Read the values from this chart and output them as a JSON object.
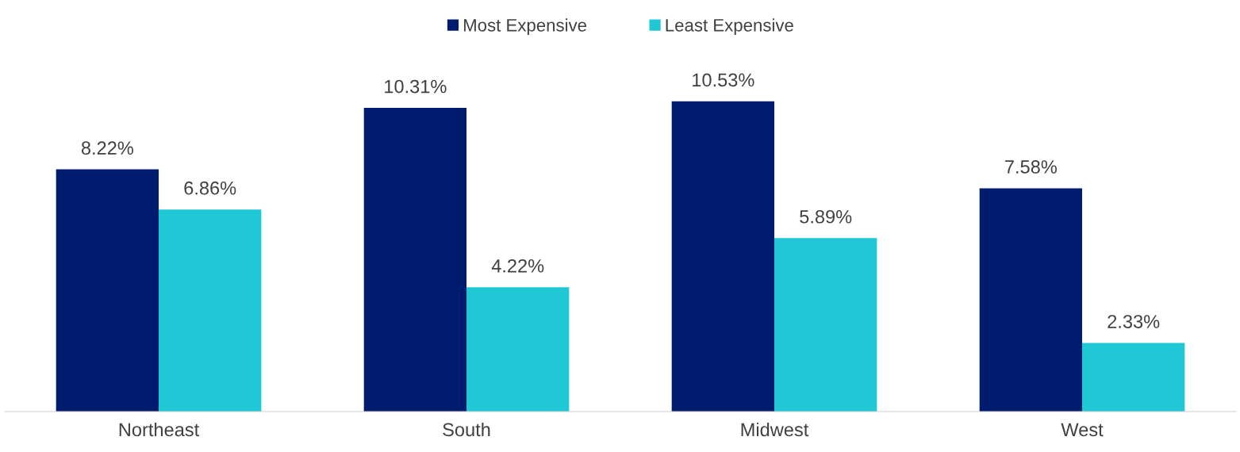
{
  "chart_data": {
    "type": "bar",
    "categories": [
      "Northeast",
      "South",
      "Midwest",
      "West"
    ],
    "series": [
      {
        "name": "Most Expensive",
        "color": "#001c6e",
        "values": [
          8.22,
          10.31,
          10.53,
          7.58
        ],
        "value_labels": [
          "8.22%",
          "10.31%",
          "10.53%",
          "7.58%"
        ]
      },
      {
        "name": "Least Expensive",
        "color": "#1fc8d4",
        "values": [
          6.86,
          4.22,
          5.89,
          2.33
        ],
        "value_labels": [
          "6.86%",
          "4.22%",
          "5.89%",
          "2.33%"
        ]
      }
    ],
    "tick_labels": "x",
    "grid": false,
    "legend": "top"
  }
}
